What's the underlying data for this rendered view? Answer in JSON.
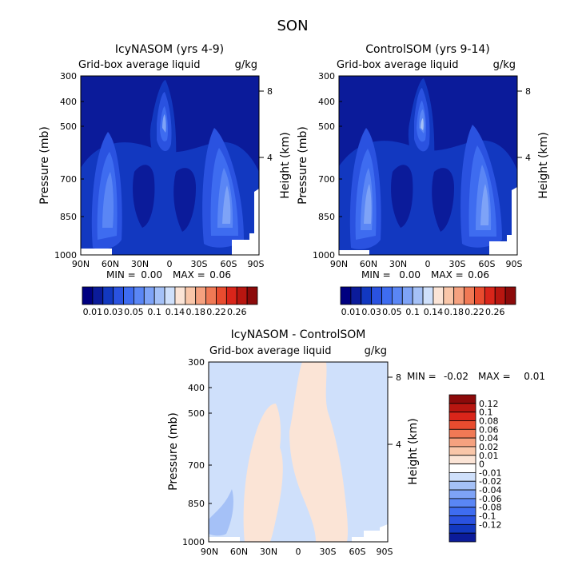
{
  "figure_title": "SON",
  "colors": {
    "dark_blue": "#0a1a8c",
    "cb_left_panels": [
      "#000080",
      "#0b1b9a",
      "#1238c0",
      "#2a52e0",
      "#3e6cf0",
      "#5a86f5",
      "#7ea3f7",
      "#a5c1f7",
      "#cfe0fb",
      "#fbe4d6",
      "#f9c6a9",
      "#f5a17f",
      "#f07955",
      "#e94c2f",
      "#d9251a",
      "#b81610",
      "#8c0a0a"
    ],
    "cb_diff": [
      "#8c0a0a",
      "#b81610",
      "#d9251a",
      "#e94c2f",
      "#f07955",
      "#f5a17f",
      "#f9c6a9",
      "#fbe4d6",
      "#ffffff",
      "#cfe0fb",
      "#a5c1f7",
      "#7ea3f7",
      "#5a86f5",
      "#3e6cf0",
      "#2a52e0",
      "#1238c0",
      "#0b1b9a"
    ]
  },
  "chart_data": [
    {
      "type": "contour",
      "title": "IcyNASOM (yrs 4-9)",
      "variable_label": "Grid-box average liquid",
      "units": "g/kg",
      "xlabel": "",
      "ylabel": "Pressure (mb)",
      "y2label": "Height (km)",
      "x_ticks": [
        "90N",
        "60N",
        "30N",
        "0",
        "30S",
        "60S",
        "90S"
      ],
      "y_ticks": [
        "300",
        "400",
        "500",
        "700",
        "850",
        "1000"
      ],
      "y2_ticks": [
        "8",
        "4"
      ],
      "min_label": "MIN =",
      "min_value": "0.00",
      "max_label": "MAX =",
      "max_value": "0.06",
      "colorbar_labels": [
        "0.01",
        "0.03",
        "0.05",
        "0.1",
        "0.14",
        "0.18",
        "0.22",
        "0.26"
      ]
    },
    {
      "type": "contour",
      "title": "ControlSOM (yrs 9-14)",
      "variable_label": "Grid-box average liquid",
      "units": "g/kg",
      "xlabel": "",
      "ylabel": "Pressure (mb)",
      "y2label": "Height (km)",
      "x_ticks": [
        "90N",
        "60N",
        "30N",
        "0",
        "30S",
        "60S",
        "90S"
      ],
      "y_ticks": [
        "300",
        "400",
        "500",
        "700",
        "850",
        "1000"
      ],
      "y2_ticks": [
        "8",
        "4"
      ],
      "min_label": "MIN =",
      "min_value": "0.00",
      "max_label": "MAX =",
      "max_value": "0.06",
      "colorbar_labels": [
        "0.01",
        "0.03",
        "0.05",
        "0.1",
        "0.14",
        "0.18",
        "0.22",
        "0.26"
      ]
    },
    {
      "type": "contour",
      "title": "IcyNASOM - ControlSOM",
      "variable_label": "Grid-box average liquid",
      "units": "g/kg",
      "xlabel": "",
      "ylabel": "Pressure (mb)",
      "y2label": "Height (km)",
      "x_ticks": [
        "90N",
        "60N",
        "30N",
        "0",
        "30S",
        "60S",
        "90S"
      ],
      "y_ticks": [
        "300",
        "400",
        "500",
        "700",
        "850",
        "1000"
      ],
      "y2_ticks": [
        "8",
        "4"
      ],
      "min_label": "MIN =",
      "min_value": "-0.02",
      "max_label": "MAX =",
      "max_value": "0.01",
      "colorbar_labels": [
        "0.12",
        "0.1",
        "0.08",
        "0.06",
        "0.04",
        "0.02",
        "0.01",
        "0",
        "-0.01",
        "-0.02",
        "-0.04",
        "-0.06",
        "-0.08",
        "-0.1",
        "-0.12"
      ]
    }
  ]
}
